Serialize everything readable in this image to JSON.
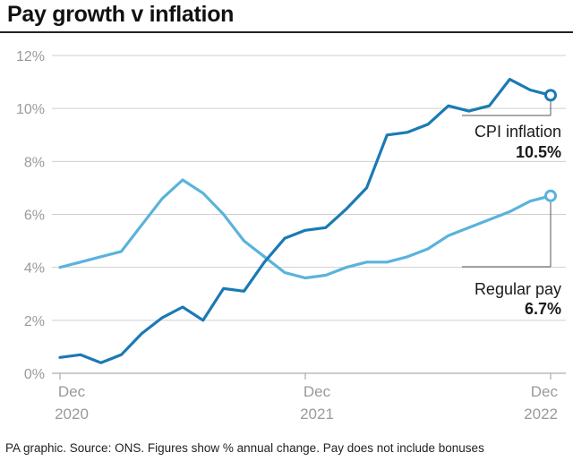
{
  "title": "Pay growth v inflation",
  "footer": "PA graphic. Source: ONS. Figures show % annual change. Pay does not include bonuses",
  "colors": {
    "cpi": "#1a7ab5",
    "pay": "#5ab3dc",
    "grid": "#cfcfcf",
    "axis": "#9a9a9a",
    "text": "#1a1a1a"
  },
  "chart_data": {
    "type": "line",
    "title": "Pay growth v inflation",
    "x_tick_labels": [
      {
        "line1": "Dec",
        "line2": "2020"
      },
      {
        "line1": "Dec",
        "line2": "2021"
      },
      {
        "line1": "Dec",
        "line2": "2022"
      }
    ],
    "x_tick_indices": [
      0,
      12,
      24
    ],
    "y_ticks": [
      "0%",
      "2%",
      "4%",
      "6%",
      "8%",
      "10%",
      "12%"
    ],
    "y_tick_values": [
      0,
      2,
      4,
      6,
      8,
      10,
      12
    ],
    "ylim": [
      0,
      12
    ],
    "x_categories": [
      "Dec 2020",
      "Jan 2021",
      "Feb 2021",
      "Mar 2021",
      "Apr 2021",
      "May 2021",
      "Jun 2021",
      "Jul 2021",
      "Aug 2021",
      "Sep 2021",
      "Oct 2021",
      "Nov 2021",
      "Dec 2021",
      "Jan 2022",
      "Feb 2022",
      "Mar 2022",
      "Apr 2022",
      "May 2022",
      "Jun 2022",
      "Jul 2022",
      "Aug 2022",
      "Sep 2022",
      "Oct 2022",
      "Nov 2022",
      "Dec 2022"
    ],
    "grid": true,
    "series": [
      {
        "name": "CPI inflation",
        "value_label": "10.5%",
        "values": [
          0.6,
          0.7,
          0.4,
          0.7,
          1.5,
          2.1,
          2.5,
          2.0,
          3.2,
          3.1,
          4.2,
          5.1,
          5.4,
          5.5,
          6.2,
          7.0,
          9.0,
          9.1,
          9.4,
          10.1,
          9.9,
          10.1,
          11.1,
          10.7,
          10.5
        ]
      },
      {
        "name": "Regular pay",
        "value_label": "6.7%",
        "values": [
          4.0,
          4.2,
          4.4,
          4.6,
          5.6,
          6.6,
          7.3,
          6.8,
          6.0,
          5.0,
          4.4,
          3.8,
          3.6,
          3.7,
          4.0,
          4.2,
          4.2,
          4.4,
          4.7,
          5.2,
          5.5,
          5.8,
          6.1,
          6.5,
          6.7
        ]
      }
    ]
  }
}
